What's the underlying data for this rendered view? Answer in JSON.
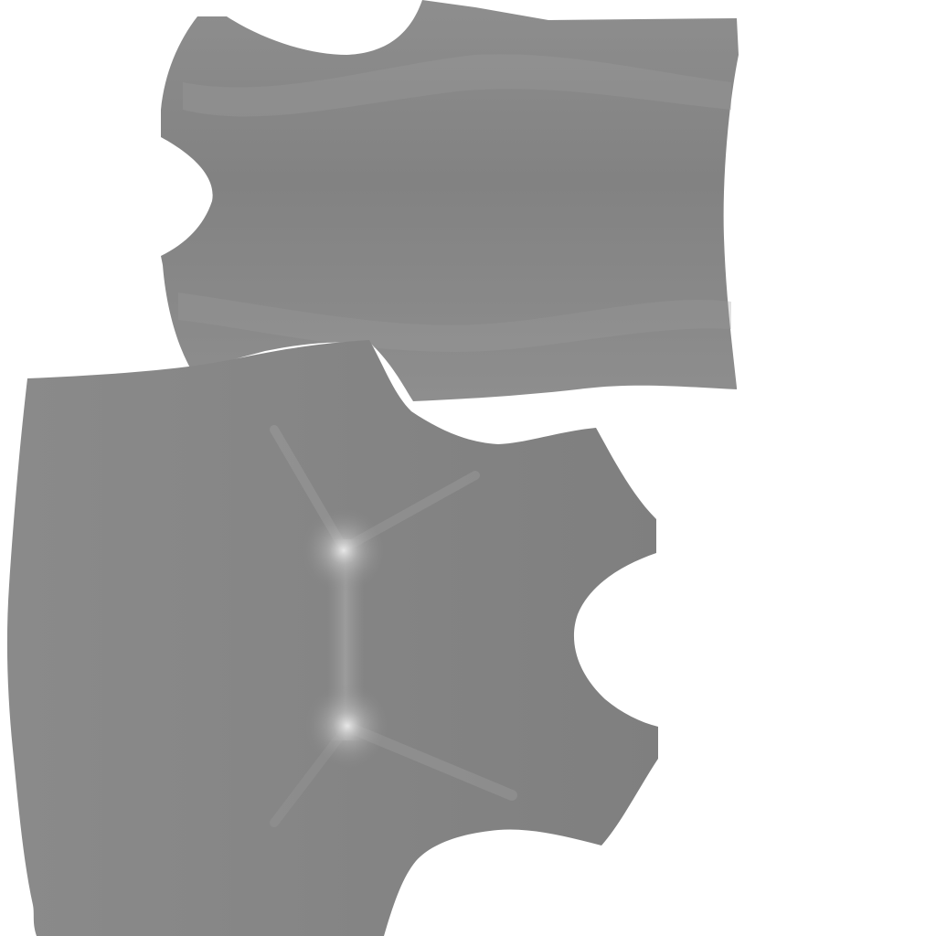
{
  "texture": {
    "background_color": "#ffffff",
    "panel_base_color": "#888888",
    "panel_dark_color": "#7e7e7e",
    "panel_light_color": "#9a9a9a",
    "highlight_color": "#e8e8e8",
    "panels": [
      {
        "kind": "upper-garment-panel"
      },
      {
        "kind": "lower-garment-panel"
      }
    ]
  }
}
